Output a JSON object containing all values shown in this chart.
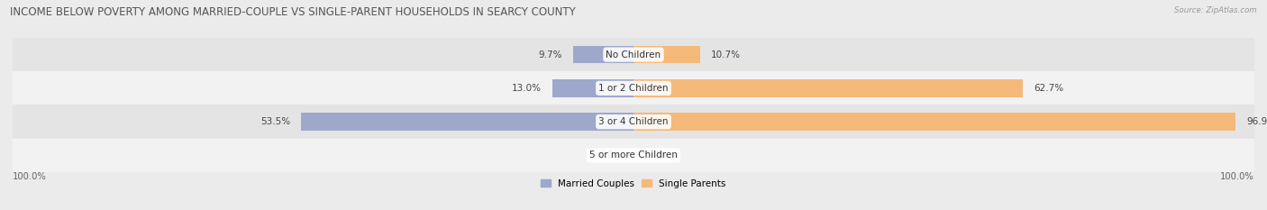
{
  "title": "INCOME BELOW POVERTY AMONG MARRIED-COUPLE VS SINGLE-PARENT HOUSEHOLDS IN SEARCY COUNTY",
  "source": "Source: ZipAtlas.com",
  "categories": [
    "No Children",
    "1 or 2 Children",
    "3 or 4 Children",
    "5 or more Children"
  ],
  "married_values": [
    9.7,
    13.0,
    53.5,
    0.0
  ],
  "single_values": [
    10.7,
    62.7,
    96.9,
    0.0
  ],
  "married_color": "#9da8cc",
  "single_color": "#f5b97a",
  "married_label": "Married Couples",
  "single_label": "Single Parents",
  "max_val": 100.0,
  "bg_color": "#ebebeb",
  "row_colors": [
    "#e4e4e4",
    "#f2f2f2",
    "#e4e4e4",
    "#f2f2f2"
  ],
  "title_fontsize": 8.5,
  "label_fontsize": 7.5,
  "tick_fontsize": 7.2,
  "left_label": "100.0%",
  "right_label": "100.0%"
}
